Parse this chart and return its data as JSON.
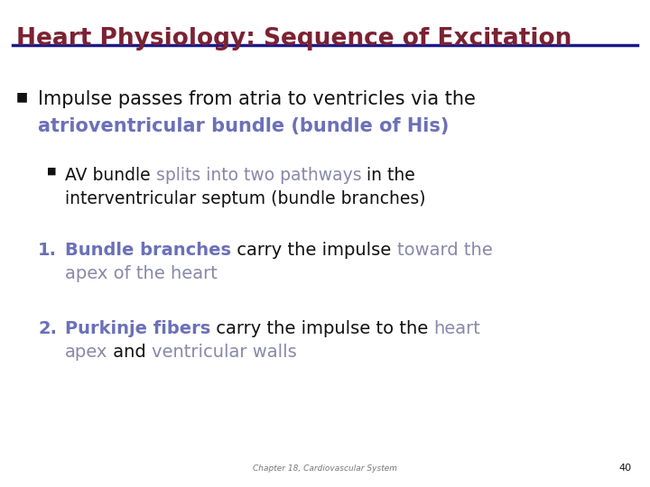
{
  "title": "Heart Physiology: Sequence of Excitation",
  "title_color": "#7B2233",
  "line_color": "#1A1A8C",
  "bg_color": "#FFFFFF",
  "footer_text": "Chapter 18, Cardiovascular System",
  "footer_page": "40",
  "blue_color": "#6B70B8",
  "gray_blue": "#8888AA",
  "black": "#111111"
}
